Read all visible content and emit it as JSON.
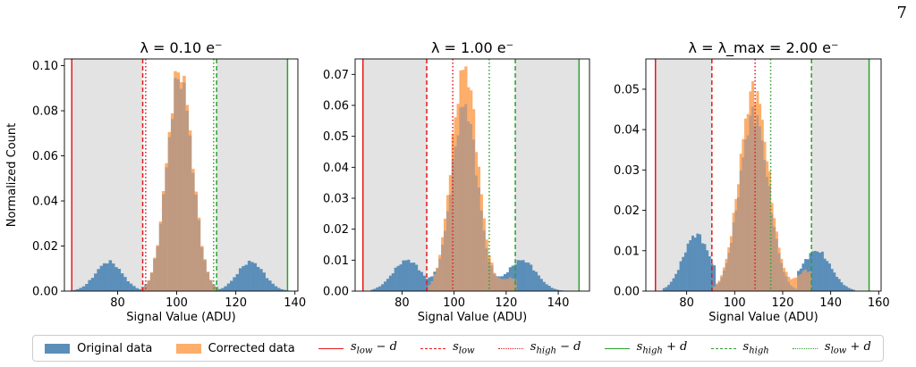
{
  "page_number": "7",
  "colors": {
    "original": "#5b8fba",
    "corrected": "#fdae6b",
    "overlap": "#c09a80",
    "red": "#e41a1c",
    "green": "#2ca02c",
    "shade": "#e3e3e3"
  },
  "legend": [
    {
      "label": "Original data",
      "kind": "patch",
      "color": "#5b8fba"
    },
    {
      "label": "Corrected data",
      "kind": "patch",
      "color": "#fdae6b"
    },
    {
      "label": "s_low − d",
      "html": "s<sub>low</sub> − d",
      "kind": "line",
      "style": "solid",
      "color": "#e41a1c"
    },
    {
      "label": "s_low",
      "html": "s<sub>low</sub>",
      "kind": "line",
      "style": "dashed",
      "color": "#e41a1c"
    },
    {
      "label": "s_high − d",
      "html": "s<sub>high</sub> − d",
      "kind": "line",
      "style": "dotted",
      "color": "#e41a1c"
    },
    {
      "label": "s_high + d",
      "html": "s<sub>high</sub> + d",
      "kind": "line",
      "style": "solid",
      "color": "#2ca02c"
    },
    {
      "label": "s_high",
      "html": "s<sub>high</sub>",
      "kind": "line",
      "style": "dashed",
      "color": "#2ca02c"
    },
    {
      "label": "s_low + d",
      "html": "s<sub>low</sub> + d",
      "kind": "line",
      "style": "dotted",
      "color": "#2ca02c"
    }
  ],
  "chart_data": [
    {
      "type": "bar",
      "title": "λ = 0.10 e⁻",
      "xlabel": "Signal Value (ADU)",
      "ylabel": "Normalized Count",
      "xlim": [
        62,
        141
      ],
      "ylim": [
        0,
        0.103
      ],
      "xticks": [
        80,
        100,
        120,
        140
      ],
      "yticks": [
        0.0,
        0.02,
        0.04,
        0.06,
        0.08,
        0.1
      ],
      "ytick_labels": [
        "0.00",
        "0.02",
        "0.04",
        "0.06",
        "0.08",
        "0.10"
      ],
      "vlines": {
        "s_low_minus_d": 64.5,
        "s_low": 88.5,
        "s_high_minus_d": 89.5,
        "s_high": 113.5,
        "s_low_plus_d": 112.5,
        "s_high_plus_d": 137.5
      },
      "shaded_ranges": [
        [
          64.5,
          88.5
        ],
        [
          113.5,
          137.5
        ]
      ],
      "series": [
        {
          "name": "Original data",
          "color": "#5b8fba",
          "components": [
            {
              "mu": 77,
              "sigma": 4.5,
              "peak": 0.013,
              "lo": 64,
              "hi": 90
            },
            {
              "mu": 101,
              "sigma": 4.3,
              "peak": 0.095,
              "lo": 88,
              "hi": 114
            },
            {
              "mu": 125,
              "sigma": 4.5,
              "peak": 0.013,
              "lo": 112,
              "hi": 138
            }
          ]
        },
        {
          "name": "Corrected data",
          "color": "#fdae6b",
          "components": [
            {
              "mu": 101,
              "sigma": 4.3,
              "peak": 0.098,
              "lo": 88,
              "hi": 114
            }
          ]
        }
      ]
    },
    {
      "type": "bar",
      "title": "λ = 1.00 e⁻",
      "xlabel": "Signal Value (ADU)",
      "ylabel": "",
      "xlim": [
        62,
        152
      ],
      "ylim": [
        0,
        0.075
      ],
      "xticks": [
        80,
        100,
        120,
        140
      ],
      "yticks": [
        0.0,
        0.01,
        0.02,
        0.03,
        0.04,
        0.05,
        0.06,
        0.07
      ],
      "ytick_labels": [
        "0.00",
        "0.01",
        "0.02",
        "0.03",
        "0.04",
        "0.05",
        "0.06",
        "0.07"
      ],
      "vlines": {
        "s_low_minus_d": 65,
        "s_low": 89.5,
        "s_high_minus_d": 99.5,
        "s_high": 123.5,
        "s_low_plus_d": 113.5,
        "s_high_plus_d": 148
      },
      "shaded_ranges": [
        [
          65,
          89.5
        ],
        [
          123.5,
          148
        ]
      ],
      "series": [
        {
          "name": "Original data",
          "color": "#5b8fba",
          "components": [
            {
              "mu": 82,
              "sigma": 5.5,
              "peak": 0.01,
              "lo": 68,
              "hi": 96
            },
            {
              "mu": 104,
              "sigma": 5.0,
              "peak": 0.06,
              "lo": 90,
              "hi": 124
            },
            {
              "mu": 126,
              "sigma": 5.5,
              "peak": 0.01,
              "lo": 114,
              "hi": 146
            }
          ]
        },
        {
          "name": "Corrected data",
          "color": "#fdae6b",
          "components": [
            {
              "mu": 104,
              "sigma": 5.0,
              "peak": 0.072,
              "lo": 90,
              "hi": 124
            },
            {
              "mu": 122,
              "sigma": 4.0,
              "peak": 0.004,
              "lo": 114,
              "hi": 124
            }
          ]
        }
      ]
    },
    {
      "type": "bar",
      "title": "λ = λ_max = 2.00 e⁻",
      "xlabel": "Signal Value (ADU)",
      "ylabel": "",
      "xlim": [
        63,
        161
      ],
      "ylim": [
        0,
        0.0575
      ],
      "xticks": [
        80,
        100,
        120,
        140,
        160
      ],
      "yticks": [
        0.0,
        0.01,
        0.02,
        0.03,
        0.04,
        0.05
      ],
      "ytick_labels": [
        "0.00",
        "0.01",
        "0.02",
        "0.03",
        "0.04",
        "0.05"
      ],
      "vlines": {
        "s_low_minus_d": 67,
        "s_low": 90.5,
        "s_high_minus_d": 108.5,
        "s_high": 132,
        "s_low_plus_d": 115,
        "s_high_plus_d": 156
      },
      "shaded_ranges": [
        [
          67,
          90.5
        ],
        [
          132,
          156
        ]
      ],
      "series": [
        {
          "name": "Original data",
          "color": "#5b8fba",
          "components": [
            {
              "mu": 84,
              "sigma": 5.5,
              "peak": 0.014,
              "lo": 70,
              "hi": 92
            },
            {
              "mu": 108,
              "sigma": 6.0,
              "peak": 0.044,
              "lo": 91,
              "hi": 132
            },
            {
              "mu": 134,
              "sigma": 6.0,
              "peak": 0.01,
              "lo": 126,
              "hi": 150
            }
          ]
        },
        {
          "name": "Corrected data",
          "color": "#fdae6b",
          "components": [
            {
              "mu": 108,
              "sigma": 6.0,
              "peak": 0.05,
              "lo": 91,
              "hi": 132
            },
            {
              "mu": 130,
              "sigma": 4.0,
              "peak": 0.005,
              "lo": 120,
              "hi": 132
            }
          ]
        }
      ]
    }
  ]
}
